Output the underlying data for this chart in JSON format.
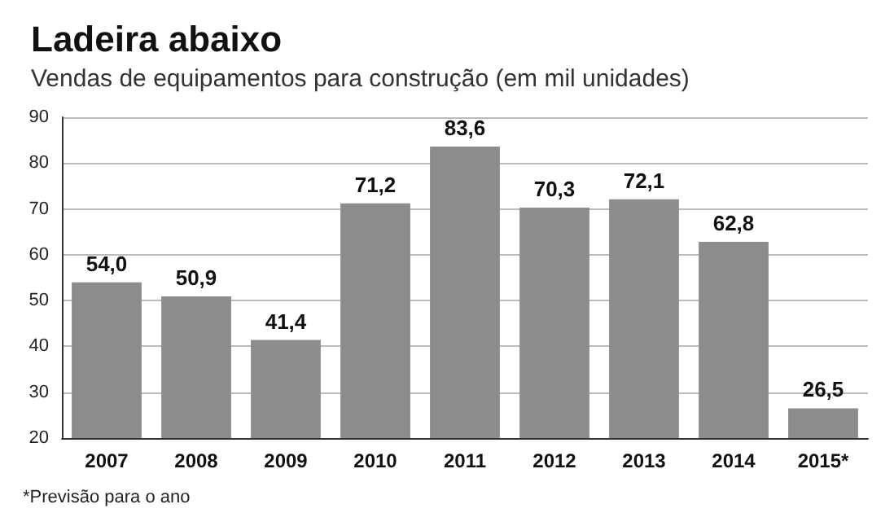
{
  "chart_data": {
    "type": "bar",
    "title": "Ladeira abaixo",
    "subtitle": "Vendas de equipamentos para construção (em mil unidades)",
    "categories": [
      "2007",
      "2008",
      "2009",
      "2010",
      "2011",
      "2012",
      "2013",
      "2014",
      "2015*"
    ],
    "values": [
      54.0,
      50.9,
      41.4,
      71.2,
      83.6,
      70.3,
      72.1,
      62.8,
      26.5
    ],
    "value_labels": [
      "54,0",
      "50,9",
      "41,4",
      "71,2",
      "83,6",
      "70,3",
      "72,1",
      "62,8",
      "26,5"
    ],
    "color": "#8c8c8c",
    "ylim": [
      20,
      90
    ],
    "yticks": [
      20,
      30,
      40,
      50,
      60,
      70,
      80,
      90
    ],
    "grid": "y",
    "annotations": [
      "*Previsão para o ano"
    ]
  }
}
